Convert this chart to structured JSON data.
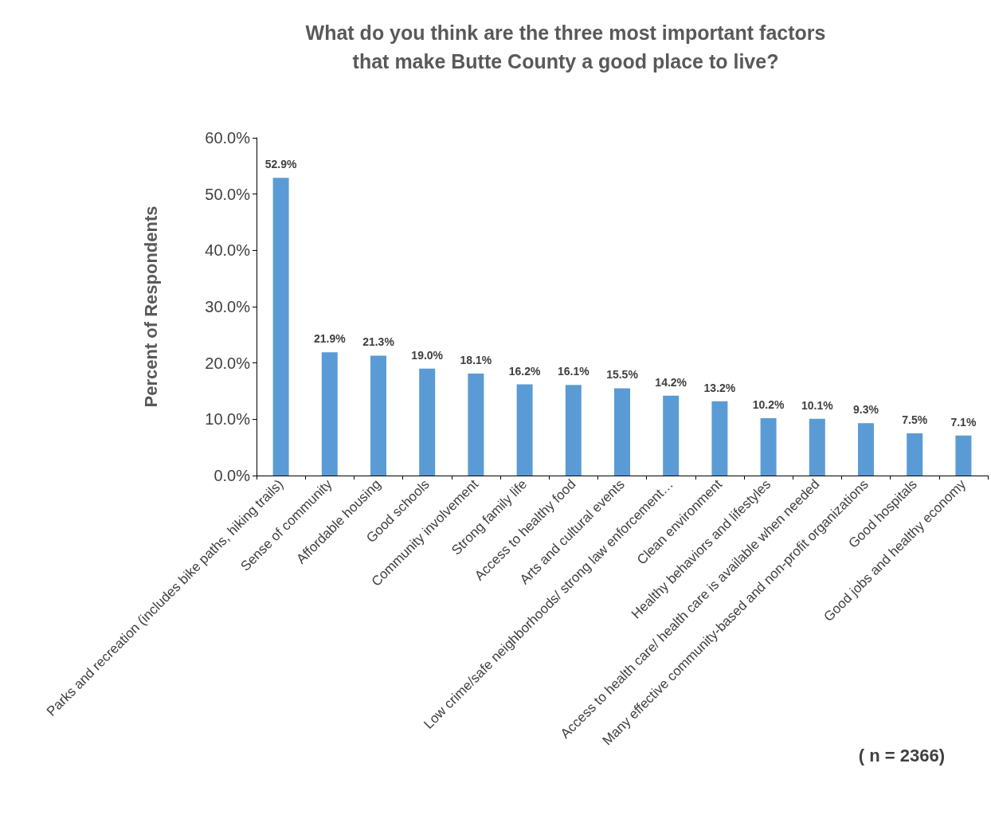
{
  "chart_data": {
    "type": "bar",
    "title": "What do you think are the three most important factors\nthat make Butte County a good place to live?",
    "ylabel": "Percent of Respondents",
    "categories": [
      "Parks and recreation (includes bike paths, hiking trails)",
      "Sense of community",
      "Affordable housing",
      "Good schools",
      "Community involvement",
      "Strong family life",
      "Access to healthy food",
      "Arts and cultural events",
      "Low crime/safe neighborhoods/ strong law enforcement…",
      "Clean environment",
      "Healthy behaviors and lifestyles",
      "Access to health care/ health care is available when needed",
      "Many effective community-based and non-profit organizations",
      "Good hospitals",
      "Good jobs and healthy economy"
    ],
    "values": [
      52.9,
      21.9,
      21.3,
      19.0,
      18.1,
      16.2,
      16.1,
      15.5,
      14.2,
      13.2,
      10.2,
      10.1,
      9.3,
      7.5,
      7.1
    ],
    "value_labels": [
      "52.9%",
      "21.9%",
      "21.3%",
      "19.0%",
      "18.1%",
      "16.2%",
      "16.1%",
      "15.5%",
      "14.2%",
      "13.2%",
      "10.2%",
      "10.1%",
      "9.3%",
      "7.5%",
      "7.1%"
    ],
    "color": "#5b9bd5",
    "ylim": [
      0,
      60
    ],
    "yticks": [
      {
        "value": 0,
        "label": "0.0%"
      },
      {
        "value": 10,
        "label": "10.0%"
      },
      {
        "value": 20,
        "label": "20.0%"
      },
      {
        "value": 30,
        "label": "30.0%"
      },
      {
        "value": 40,
        "label": "40.0%"
      },
      {
        "value": 50,
        "label": "50.0%"
      },
      {
        "value": 60,
        "label": "60.0%"
      }
    ],
    "annotations": [
      "( n = 2366)"
    ]
  }
}
